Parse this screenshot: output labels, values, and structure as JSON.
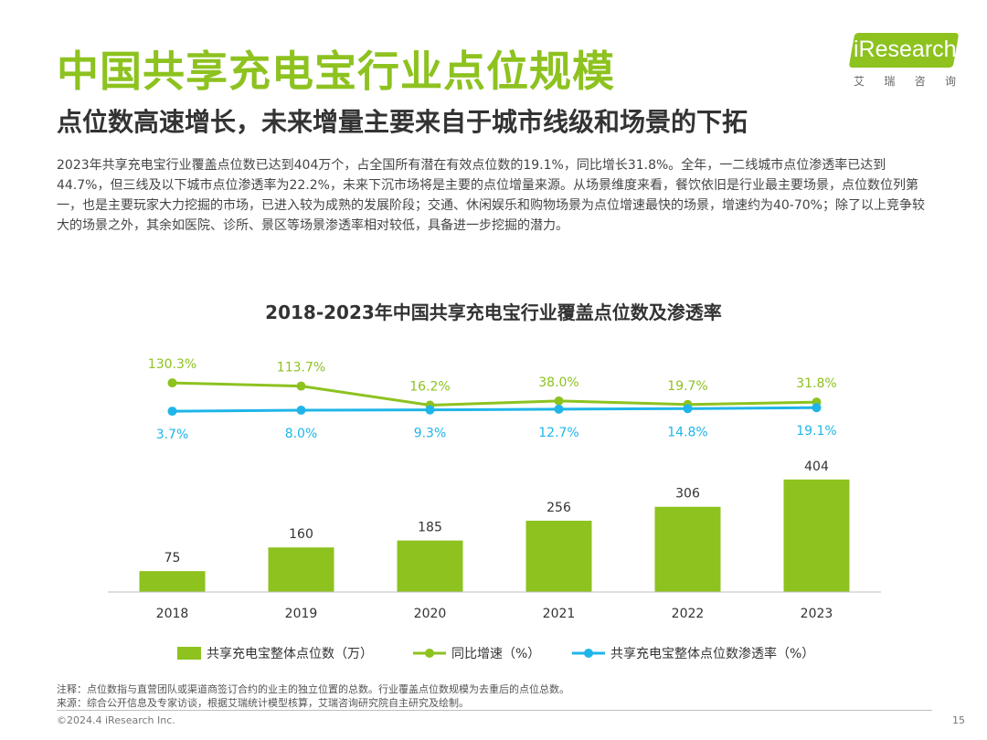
{
  "header": {
    "title": "中国共享充电宝行业点位规模",
    "subtitle": "点位数高速增长，未来增量主要来自于城市线级和场景的下拓",
    "paragraph": "2023年共享充电宝行业覆盖点位数已达到404万个，占全国所有潜在有效点位数的19.1%，同比增长31.8%。全年，一二线城市点位渗透率已达到44.7%，但三线及以下城市点位渗透率为22.2%，未来下沉市场将是主要的点位增量来源。从场景维度来看，餐饮依旧是行业最主要场景，点位数位列第一，也是主要玩家大力挖掘的市场，已进入较为成熟的发展阶段；交通、休闲娱乐和购物场景为点位增速最快的场景，增速约为40-70%；除了以上竞争较大的场景之外，其余如医院、诊所、景区等场景渗透率相对较低，具备进一步挖掘的潜力。"
  },
  "logo": {
    "name": "iResearch",
    "chars": [
      "艾",
      "瑞",
      "咨",
      "询"
    ]
  },
  "chart_data": {
    "type": "bar",
    "title": "2018-2023年中国共享充电宝行业覆盖点位数及渗透率",
    "categories": [
      "2018",
      "2019",
      "2020",
      "2021",
      "2022",
      "2023"
    ],
    "series": [
      {
        "name": "共享充电宝整体点位数（万）",
        "type": "bar",
        "values": [
          75,
          160,
          185,
          256,
          306,
          404
        ],
        "labels": [
          "75",
          "160",
          "185",
          "256",
          "306",
          "404"
        ],
        "color": "#8dc21f"
      },
      {
        "name": "同比增速（%）",
        "type": "line",
        "values": [
          130.3,
          113.7,
          16.2,
          38.0,
          19.7,
          31.8
        ],
        "labels": [
          "130.3%",
          "113.7%",
          "16.2%",
          "38.0%",
          "19.7%",
          "31.8%"
        ],
        "color": "#8dc21f"
      },
      {
        "name": "共享充电宝整体点位数渗透率（%）",
        "type": "line",
        "values": [
          3.7,
          8.0,
          9.3,
          12.7,
          14.8,
          19.1
        ],
        "labels": [
          "3.7%",
          "8.0%",
          "9.3%",
          "12.7%",
          "14.8%",
          "19.1%"
        ],
        "color": "#1fb5e8"
      }
    ],
    "legend_position": "bottom",
    "grid": false
  },
  "notes": {
    "note": "注释：点位数指与直营团队或渠道商签订合约的业主的独立位置的总数。行业覆盖点位数规模为去重后的点位总数。",
    "source": "来源：综合公开信息及专家访谈，根据艾瑞统计模型核算，艾瑞咨询研究院自主研究及绘制。"
  },
  "footer": {
    "copyright": "©2024.4 iResearch Inc.",
    "page": "15"
  }
}
